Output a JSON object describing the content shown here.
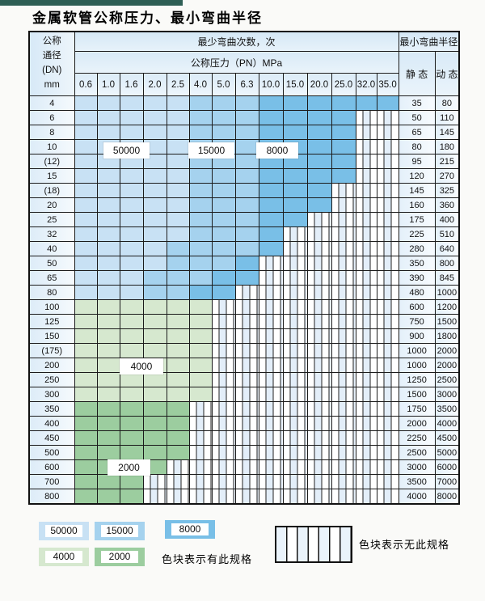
{
  "page_title": "金属软管公称压力、最小弯曲半径",
  "colors": {
    "c50000": "#c8e1f4",
    "c15000": "#a5d2ee",
    "c8000": "#79bfe7",
    "c4000": "#d6e8cf",
    "c2000": "#9ccd9f",
    "header_blue": "#d9eaf7",
    "topbar_teal": "#2e5f55"
  },
  "table": {
    "dn_header_lines": [
      "公称",
      "通径",
      "(DN)",
      "mm"
    ],
    "bend_cycles_header": "最少弯曲次数，次",
    "pressure_header": "公称压力（PN）MPa",
    "radius_header": "最小弯曲半径",
    "static_header": "静 态",
    "dynamic_header": "动 态",
    "pressure_columns": [
      "0.6",
      "1.0",
      "1.6",
      "2.0",
      "2.5",
      "4.0",
      "5.0",
      "6.3",
      "10.0",
      "15.0",
      "20.0",
      "25.0",
      "32.0",
      "35.0"
    ],
    "rows": [
      {
        "dn": "4",
        "bands": [
          [
            "c50000",
            5
          ],
          [
            "c15000",
            3
          ],
          [
            "c8000",
            6
          ]
        ],
        "static": "35",
        "dynamic": "80"
      },
      {
        "dn": "6",
        "bands": [
          [
            "c50000",
            5
          ],
          [
            "c15000",
            3
          ],
          [
            "c8000",
            4
          ]
        ],
        "static": "50",
        "dynamic": "110"
      },
      {
        "dn": "8",
        "bands": [
          [
            "c50000",
            5
          ],
          [
            "c15000",
            3
          ],
          [
            "c8000",
            4
          ]
        ],
        "static": "65",
        "dynamic": "145"
      },
      {
        "dn": "10",
        "bands": [
          [
            "c50000",
            5
          ],
          [
            "c15000",
            3
          ],
          [
            "c8000",
            4
          ]
        ],
        "static": "80",
        "dynamic": "180"
      },
      {
        "dn": "(12)",
        "bands": [
          [
            "c50000",
            5
          ],
          [
            "c15000",
            3
          ],
          [
            "c8000",
            4
          ]
        ],
        "static": "95",
        "dynamic": "215"
      },
      {
        "dn": "15",
        "bands": [
          [
            "c50000",
            5
          ],
          [
            "c15000",
            3
          ],
          [
            "c8000",
            4
          ]
        ],
        "static": "120",
        "dynamic": "270"
      },
      {
        "dn": "(18)",
        "bands": [
          [
            "c50000",
            5
          ],
          [
            "c15000",
            3
          ],
          [
            "c8000",
            3
          ]
        ],
        "static": "145",
        "dynamic": "325"
      },
      {
        "dn": "20",
        "bands": [
          [
            "c50000",
            5
          ],
          [
            "c15000",
            3
          ],
          [
            "c8000",
            3
          ]
        ],
        "static": "160",
        "dynamic": "360"
      },
      {
        "dn": "25",
        "bands": [
          [
            "c50000",
            5
          ],
          [
            "c15000",
            3
          ],
          [
            "c8000",
            2
          ]
        ],
        "static": "175",
        "dynamic": "400"
      },
      {
        "dn": "32",
        "bands": [
          [
            "c50000",
            5
          ],
          [
            "c15000",
            3
          ],
          [
            "c8000",
            1
          ]
        ],
        "static": "225",
        "dynamic": "510"
      },
      {
        "dn": "40",
        "bands": [
          [
            "c50000",
            4
          ],
          [
            "c15000",
            4
          ],
          [
            "c8000",
            1
          ]
        ],
        "static": "280",
        "dynamic": "640"
      },
      {
        "dn": "50",
        "bands": [
          [
            "c50000",
            4
          ],
          [
            "c15000",
            3
          ],
          [
            "c8000",
            1
          ]
        ],
        "static": "350",
        "dynamic": "800"
      },
      {
        "dn": "65",
        "bands": [
          [
            "c50000",
            3
          ],
          [
            "c15000",
            3
          ],
          [
            "c8000",
            2
          ]
        ],
        "static": "390",
        "dynamic": "845"
      },
      {
        "dn": "80",
        "bands": [
          [
            "c50000",
            3
          ],
          [
            "c15000",
            2
          ],
          [
            "c8000",
            2
          ]
        ],
        "static": "480",
        "dynamic": "1000"
      },
      {
        "dn": "100",
        "bands": [
          [
            "c4000",
            6
          ]
        ],
        "static": "600",
        "dynamic": "1200"
      },
      {
        "dn": "125",
        "bands": [
          [
            "c4000",
            6
          ]
        ],
        "static": "750",
        "dynamic": "1500"
      },
      {
        "dn": "150",
        "bands": [
          [
            "c4000",
            6
          ]
        ],
        "static": "900",
        "dynamic": "1800"
      },
      {
        "dn": "(175)",
        "bands": [
          [
            "c4000",
            6
          ]
        ],
        "static": "1000",
        "dynamic": "2000"
      },
      {
        "dn": "200",
        "bands": [
          [
            "c4000",
            6
          ]
        ],
        "static": "1000",
        "dynamic": "2000"
      },
      {
        "dn": "250",
        "bands": [
          [
            "c4000",
            6
          ]
        ],
        "static": "1250",
        "dynamic": "2500"
      },
      {
        "dn": "300",
        "bands": [
          [
            "c4000",
            6
          ]
        ],
        "static": "1500",
        "dynamic": "3000"
      },
      {
        "dn": "350",
        "bands": [
          [
            "c2000",
            5
          ]
        ],
        "static": "1750",
        "dynamic": "3500"
      },
      {
        "dn": "400",
        "bands": [
          [
            "c2000",
            5
          ]
        ],
        "static": "2000",
        "dynamic": "4000"
      },
      {
        "dn": "450",
        "bands": [
          [
            "c2000",
            5
          ]
        ],
        "static": "2250",
        "dynamic": "4500"
      },
      {
        "dn": "500",
        "bands": [
          [
            "c2000",
            5
          ]
        ],
        "static": "2500",
        "dynamic": "5000"
      },
      {
        "dn": "600",
        "bands": [
          [
            "c2000",
            4
          ]
        ],
        "static": "3000",
        "dynamic": "6000"
      },
      {
        "dn": "700",
        "bands": [
          [
            "c2000",
            3
          ]
        ],
        "static": "3500",
        "dynamic": "7000"
      },
      {
        "dn": "800",
        "bands": [
          [
            "c2000",
            3
          ]
        ],
        "static": "4000",
        "dynamic": "8000"
      }
    ]
  },
  "cycle_labels": {
    "l50000": "50000",
    "l15000": "15000",
    "l8000": "8000",
    "l4000": "4000",
    "l2000": "2000"
  },
  "legend": {
    "swatches": [
      {
        "label": "50000",
        "color_key": "c50000"
      },
      {
        "label": "15000",
        "color_key": "c15000"
      },
      {
        "label": "8000",
        "color_key": "c8000"
      },
      {
        "label": "4000",
        "color_key": "c4000"
      },
      {
        "label": "2000",
        "color_key": "c2000"
      }
    ],
    "has_spec_note": "色块表示有此规格",
    "no_spec_note": "色块表示无此规格"
  }
}
